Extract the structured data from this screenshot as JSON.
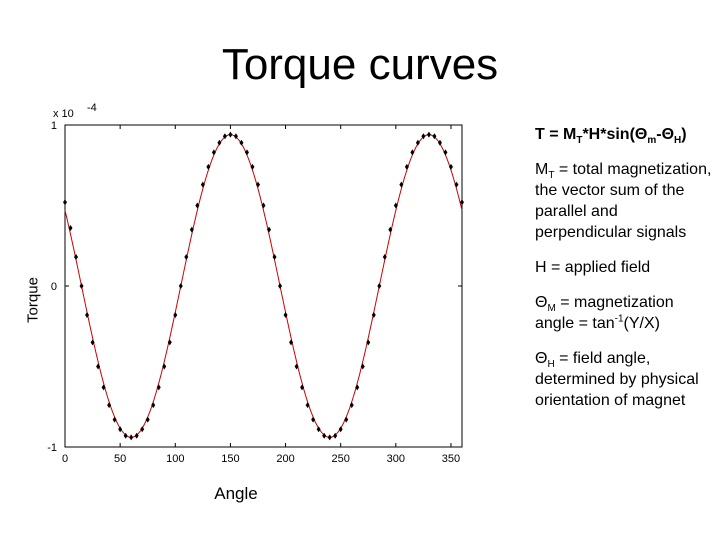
{
  "title": "Torque curves",
  "formula": {
    "lhs": "T = M",
    "sub1": "T",
    "mid": "*H*sin(Θ",
    "sub2": "m",
    "dash": "-Θ",
    "sub3": "H",
    "end": ")"
  },
  "notes": {
    "mt_symbol": "M",
    "mt_sub": "T",
    "mt_text": " = total magnetization, the vector sum of the parallel and perpendicular signals",
    "h_text": "H = applied field",
    "thm_symbol": "Θ",
    "thm_sub": "M",
    "thm_text": " = magnetization angle = tan",
    "thm_sup": "-1",
    "thm_arg": "(Y/X)",
    "thh_symbol": "Θ",
    "thh_sub": "H",
    "thh_text": " = field angle, determined by physical orientation of magnet"
  },
  "chart_data": {
    "type": "line",
    "title": "Torque curves",
    "xlabel": "Angle",
    "ylabel": "Torque",
    "xlim": [
      0,
      360
    ],
    "ylim": [
      -1,
      1
    ],
    "y_scale_note": "x 10",
    "y_scale_exp": "-4",
    "xticks": [
      0,
      50,
      100,
      150,
      200,
      250,
      300,
      350
    ],
    "xtick_labels": [
      "0",
      "50",
      "100",
      "150",
      "200",
      "250",
      "300",
      "350"
    ],
    "yticks": [
      -1,
      0,
      1
    ],
    "ytick_labels": [
      "-1",
      "0",
      "1"
    ],
    "grid": false,
    "colors": {
      "fit": "#cc0000",
      "points": "#000000"
    },
    "series": [
      {
        "style": "markers",
        "x": [
          0,
          5,
          10,
          15,
          20,
          25,
          30,
          35,
          40,
          45,
          50,
          55,
          60,
          65,
          70,
          75,
          80,
          85,
          90,
          95,
          100,
          105,
          110,
          115,
          120,
          125,
          130,
          135,
          140,
          145,
          150,
          155,
          160,
          165,
          170,
          175,
          180,
          185,
          190,
          195,
          200,
          205,
          210,
          215,
          220,
          225,
          230,
          235,
          240,
          245,
          250,
          255,
          260,
          265,
          270,
          275,
          280,
          285,
          290,
          295,
          300,
          305,
          310,
          315,
          320,
          325,
          330,
          335,
          340,
          345,
          350,
          355,
          360
        ],
        "y": [
          0.52,
          0.36,
          0.18,
          0.0,
          -0.18,
          -0.35,
          -0.5,
          -0.63,
          -0.74,
          -0.83,
          -0.89,
          -0.93,
          -0.94,
          -0.93,
          -0.89,
          -0.83,
          -0.74,
          -0.63,
          -0.5,
          -0.35,
          -0.18,
          0.0,
          0.18,
          0.35,
          0.5,
          0.63,
          0.74,
          0.83,
          0.89,
          0.93,
          0.94,
          0.93,
          0.89,
          0.83,
          0.74,
          0.63,
          0.5,
          0.35,
          0.18,
          0.0,
          -0.18,
          -0.35,
          -0.5,
          -0.63,
          -0.74,
          -0.83,
          -0.89,
          -0.93,
          -0.94,
          -0.93,
          -0.89,
          -0.83,
          -0.74,
          -0.63,
          -0.5,
          -0.35,
          -0.18,
          0.0,
          0.18,
          0.35,
          0.5,
          0.63,
          0.74,
          0.83,
          0.89,
          0.93,
          0.94,
          0.93,
          0.89,
          0.83,
          0.74,
          0.63,
          0.52
        ]
      },
      {
        "style": "line",
        "function": "0.94*cos(2*(x-150) deg)"
      }
    ]
  }
}
